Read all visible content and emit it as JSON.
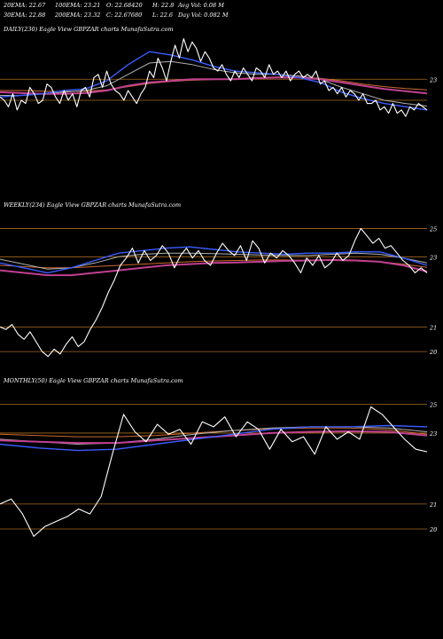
{
  "header": {
    "row1": [
      {
        "text": "20EMA: 22.67"
      },
      {
        "text": "100EMA: 23.21"
      },
      {
        "text": "O: 22.68420"
      },
      {
        "text": "H: 22.8"
      },
      {
        "text": "Avg Vol: 0.08  M"
      }
    ],
    "row2": [
      {
        "text": "30EMA: 22.88"
      },
      {
        "text": "200EMA: 23.32"
      },
      {
        "text": "C: 22.67680"
      },
      {
        "text": "L: 22.6"
      },
      {
        "text": "Day Vol: 0.082  M"
      }
    ]
  },
  "colors": {
    "background": "#000000",
    "price": "#ffffff",
    "ema20": "#3a5cff",
    "ema30": "#b0b0b0",
    "ema100": "#c04090",
    "ema200": "#cc6a30",
    "gridline": "#a86a1c",
    "text": "#ffffff"
  },
  "chart_data": [
    {
      "type": "line",
      "panel": "daily",
      "title": "DAILY(230) Eagle  View  GBPZAR charts MunafaSutra.com",
      "y_tick_labels": [
        "23"
      ],
      "guide_levels": [
        23.65,
        23.0
      ],
      "ylim": [
        21.3,
        25.0
      ],
      "series": [
        {
          "role": "price",
          "values": [
            23.1,
            23.0,
            22.8,
            23.2,
            22.7,
            23.0,
            22.9,
            23.4,
            23.2,
            22.9,
            23.0,
            23.5,
            23.4,
            23.1,
            22.9,
            23.3,
            23.0,
            23.2,
            22.8,
            23.3,
            23.4,
            23.1,
            23.7,
            23.8,
            23.4,
            23.9,
            23.5,
            23.3,
            23.2,
            23.0,
            23.3,
            23.1,
            22.9,
            23.2,
            23.4,
            23.9,
            23.7,
            24.3,
            24.0,
            23.6,
            24.2,
            24.7,
            24.3,
            24.9,
            24.5,
            24.8,
            24.6,
            24.2,
            24.5,
            24.3,
            24.0,
            23.9,
            24.1,
            23.8,
            23.6,
            23.9,
            23.7,
            24.0,
            23.8,
            23.6,
            24.0,
            23.9,
            23.7,
            24.1,
            23.8,
            23.9,
            23.7,
            23.9,
            23.6,
            23.8,
            23.9,
            23.7,
            23.8,
            23.7,
            23.9,
            23.5,
            23.6,
            23.3,
            23.4,
            23.2,
            23.4,
            23.1,
            23.3,
            23.2,
            23.0,
            23.2,
            22.9,
            22.9,
            23.0,
            22.7,
            22.8,
            22.6,
            22.9,
            22.6,
            22.7,
            22.5,
            22.8,
            22.7,
            22.9,
            22.8,
            22.7
          ]
        },
        {
          "role": "ema20",
          "values": [
            23.1,
            23.15,
            23.2,
            23.3,
            23.35,
            23.6,
            24.1,
            24.5,
            24.4,
            24.25,
            24.05,
            23.9,
            23.85,
            23.8,
            23.7,
            23.55,
            23.25,
            23.05,
            22.9,
            22.8,
            22.7
          ]
        },
        {
          "role": "ema30",
          "values": [
            23.15,
            23.15,
            23.2,
            23.25,
            23.3,
            23.45,
            23.8,
            24.15,
            24.2,
            24.1,
            23.95,
            23.85,
            23.8,
            23.8,
            23.75,
            23.65,
            23.4,
            23.2,
            23.0,
            22.9,
            22.82
          ]
        },
        {
          "role": "ema100",
          "values": [
            23.25,
            23.22,
            23.2,
            23.2,
            23.22,
            23.3,
            23.45,
            23.55,
            23.6,
            23.65,
            23.65,
            23.65,
            23.68,
            23.7,
            23.7,
            23.65,
            23.55,
            23.45,
            23.35,
            23.28,
            23.21
          ]
        },
        {
          "role": "ema200",
          "values": [
            23.3,
            23.3,
            23.28,
            23.27,
            23.28,
            23.32,
            23.42,
            23.52,
            23.58,
            23.62,
            23.64,
            23.66,
            23.7,
            23.72,
            23.72,
            23.68,
            23.6,
            23.5,
            23.42,
            23.36,
            23.32
          ]
        }
      ]
    },
    {
      "type": "line",
      "panel": "weekly",
      "title": "WEEKLY(234) Eagle  View  GBPZAR charts MunafaSutra.com",
      "y_tick_labels": [
        "25",
        "23",
        "21",
        "20"
      ],
      "guide_levels": [
        25,
        23.85,
        21,
        20
      ],
      "ylim": [
        19.5,
        25.7
      ],
      "series": [
        {
          "role": "price",
          "values": [
            21.0,
            20.9,
            21.1,
            20.7,
            20.5,
            20.8,
            20.4,
            20.0,
            19.8,
            20.1,
            19.9,
            20.3,
            20.6,
            20.2,
            20.4,
            20.9,
            21.3,
            21.8,
            22.4,
            22.9,
            23.5,
            23.8,
            24.2,
            23.6,
            24.1,
            23.7,
            23.9,
            24.3,
            24.0,
            23.4,
            23.9,
            24.2,
            23.8,
            24.1,
            23.7,
            23.5,
            24.0,
            24.4,
            24.1,
            23.9,
            24.3,
            23.7,
            24.5,
            24.2,
            23.6,
            24.0,
            23.8,
            24.1,
            23.9,
            23.6,
            23.2,
            23.8,
            23.5,
            23.9,
            23.4,
            23.6,
            24.0,
            23.7,
            23.9,
            24.5,
            25.0,
            24.7,
            24.4,
            24.6,
            24.2,
            24.3,
            24.0,
            23.7,
            23.5,
            23.2,
            23.4,
            23.2
          ]
        },
        {
          "role": "ema20",
          "values": [
            23.6,
            23.4,
            23.2,
            23.4,
            23.7,
            24.0,
            24.1,
            24.2,
            24.25,
            24.15,
            24.05,
            24.0,
            23.95,
            24.0,
            24.0,
            24.05,
            24.05,
            23.8,
            23.5
          ]
        },
        {
          "role": "ema30",
          "values": [
            23.75,
            23.55,
            23.35,
            23.4,
            23.6,
            23.85,
            23.95,
            24.0,
            24.0,
            23.98,
            23.95,
            23.92,
            23.9,
            23.9,
            23.95,
            24.0,
            23.95,
            23.8,
            23.6
          ]
        },
        {
          "role": "ema100",
          "values": [
            23.3,
            23.2,
            23.1,
            23.1,
            23.2,
            23.3,
            23.4,
            23.5,
            23.55,
            23.6,
            23.62,
            23.65,
            23.68,
            23.7,
            23.72,
            23.7,
            23.65,
            23.5,
            23.25
          ]
        },
        {
          "role": "ema200",
          "values": [
            23.5,
            23.45,
            23.4,
            23.4,
            23.45,
            23.5,
            23.55,
            23.6,
            23.65,
            23.68,
            23.7,
            23.72,
            23.72,
            23.7,
            23.7,
            23.68,
            23.65,
            23.55,
            23.42
          ]
        }
      ]
    },
    {
      "type": "line",
      "panel": "monthly",
      "title": "MONTHLY(50) Eagle  View  GBPZAR charts MunafaSutra.com",
      "y_tick_labels": [
        "25",
        "23",
        "21",
        "20"
      ],
      "guide_levels": [
        25,
        23.85,
        21,
        20
      ],
      "ylim": [
        19.5,
        25.7
      ],
      "series": [
        {
          "role": "price",
          "values": [
            21.0,
            21.2,
            20.6,
            19.7,
            20.1,
            20.3,
            20.5,
            20.8,
            20.6,
            21.3,
            23.0,
            24.6,
            23.9,
            23.5,
            24.2,
            23.8,
            24.0,
            23.4,
            24.3,
            24.1,
            24.5,
            23.7,
            24.3,
            24.0,
            23.2,
            24.0,
            23.5,
            23.7,
            23.0,
            24.1,
            23.6,
            23.9,
            23.6,
            24.9,
            24.6,
            24.1,
            23.6,
            23.2,
            23.1
          ]
        },
        {
          "role": "ema20",
          "values": [
            23.4,
            23.25,
            23.15,
            23.2,
            23.4,
            23.6,
            23.8,
            24.0,
            24.1,
            24.1,
            24.15,
            24.1
          ]
        },
        {
          "role": "ema30",
          "values": [
            23.6,
            23.5,
            23.4,
            23.45,
            23.6,
            23.8,
            23.95,
            24.05,
            24.1,
            24.1,
            24.05,
            23.9
          ]
        },
        {
          "role": "ema100",
          "values": [
            23.55,
            23.5,
            23.45,
            23.45,
            23.55,
            23.65,
            23.75,
            23.85,
            23.9,
            23.92,
            23.9,
            23.75
          ]
        },
        {
          "role": "ema200",
          "values": [
            23.8,
            23.75,
            23.7,
            23.7,
            23.75,
            23.85,
            23.95,
            24.02,
            24.05,
            24.05,
            23.98,
            23.8
          ]
        }
      ]
    }
  ]
}
